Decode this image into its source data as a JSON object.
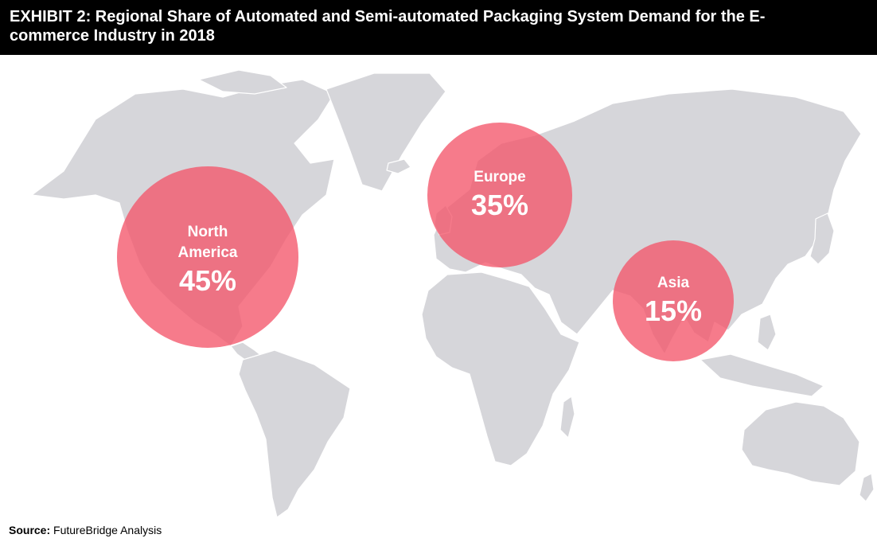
{
  "header": {
    "title": "EXHIBIT 2: Regional Share of Automated and Semi-automated Packaging System Demand for the E-commerce Industry in 2018"
  },
  "colors": {
    "header_bg": "#000000",
    "land": "#d6d6da",
    "bubble": "#f4566a"
  },
  "regions": [
    {
      "name": "North America",
      "share": "45%",
      "value": 45
    },
    {
      "name": "Europe",
      "share": "35%",
      "value": 35
    },
    {
      "name": "Asia",
      "share": "15%",
      "value": 15
    }
  ],
  "source": {
    "label": "Source:",
    "text": "FutureBridge Analysis"
  }
}
